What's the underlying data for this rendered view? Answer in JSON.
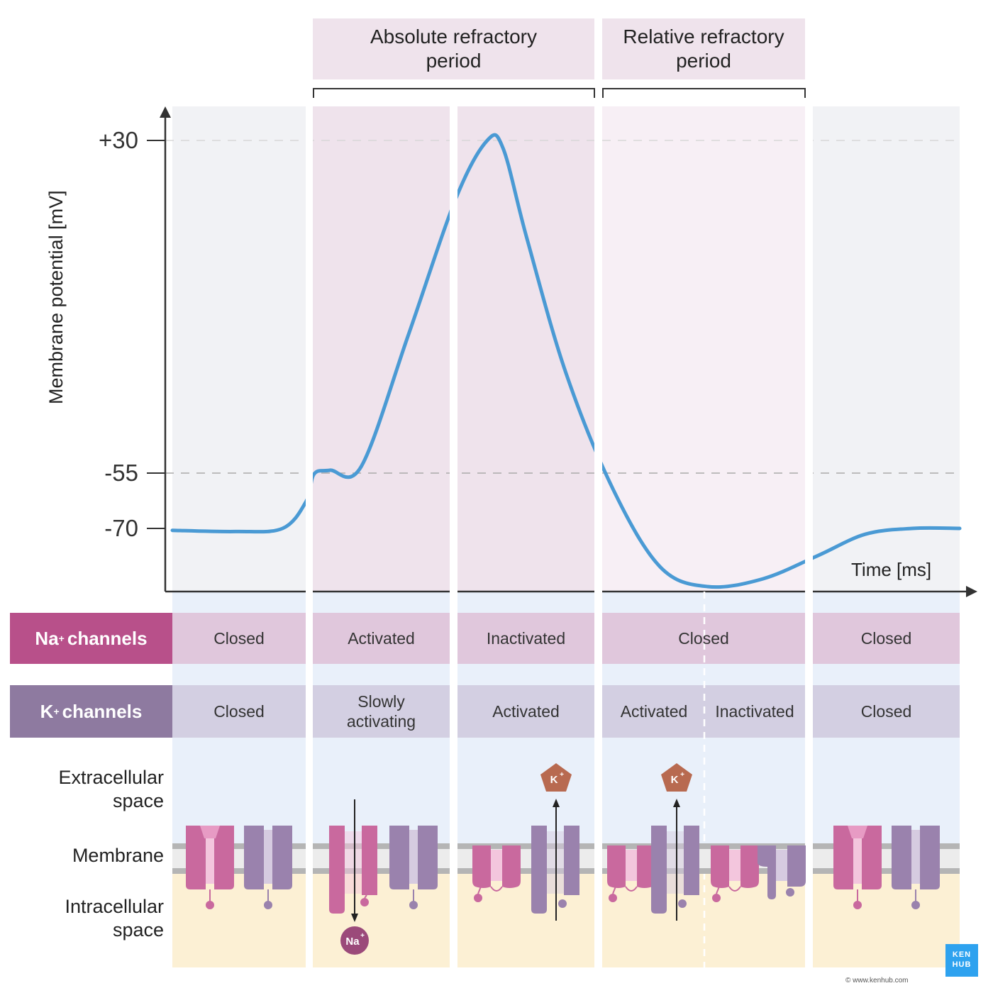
{
  "headers": {
    "absolute": "Absolute refractory period",
    "relative": "Relative refractory period"
  },
  "axes": {
    "ylabel": "Membrane potential [mV]",
    "xlabel": "Time [ms]",
    "ticks": [
      "+30",
      "-55",
      "-70"
    ]
  },
  "chart_data": {
    "type": "line",
    "title": "",
    "xlabel": "Time [ms]",
    "ylabel": "Membrane potential [mV]",
    "y_ticks": [
      30,
      -55,
      -70
    ],
    "reference_lines": [
      30,
      -55
    ],
    "series": [
      {
        "color": "#4a9ad4",
        "points_note": "",
        "t": [
          0,
          8,
          14,
          17,
          18,
          20,
          24,
          30,
          36,
          40,
          42,
          45,
          50,
          56,
          62,
          68,
          75,
          82,
          88,
          94,
          100
        ],
        "v": [
          -70.5,
          -70.8,
          -70,
          -63,
          -56,
          -55,
          -54,
          -20,
          15,
          30,
          28,
          5,
          -30,
          -60,
          -80,
          -85,
          -83,
          -77,
          -71.5,
          -70,
          -70
        ]
      }
    ],
    "phases": [
      "resting",
      "depolarization",
      "repolarization",
      "hyperpolarization",
      "resting"
    ]
  },
  "rows": {
    "na": {
      "label_main": "Na",
      "label_sup": "+",
      "label_rest": "channels",
      "states": [
        "Closed",
        "Activated",
        "Inactivated",
        "Closed",
        "Closed"
      ]
    },
    "k": {
      "label_main": "K",
      "label_sup": "+",
      "label_rest": "channels",
      "states": [
        "Closed",
        "Slowly activating",
        "Activated",
        "Activated",
        "Inactivated",
        "Closed"
      ]
    }
  },
  "side_labels": {
    "extracellular": "Extracellular space",
    "membrane": "Membrane",
    "intracellular": "Intracellular space"
  },
  "ions": {
    "na": "Na",
    "k": "K",
    "charge": "+"
  },
  "brand": {
    "logo_top": "KEN",
    "logo_bottom": "HUB",
    "copyright": "© www.kenhub.com"
  },
  "colors": {
    "trace": "#4a9ad4",
    "na_channel": "#c9699e",
    "k_channel": "#9a82ad",
    "na_row": "#b8508a",
    "k_row": "#8e7aa0",
    "refractory_bg": "#efe3ec",
    "rest_bg": "#f1f2f5",
    "extracellular_bg": "#e9f0fa",
    "intracellular_bg": "#fcf0d4",
    "k_ion": "#b86a50",
    "na_ion": "#9b4a7a",
    "logo": "#2ea2ef"
  }
}
